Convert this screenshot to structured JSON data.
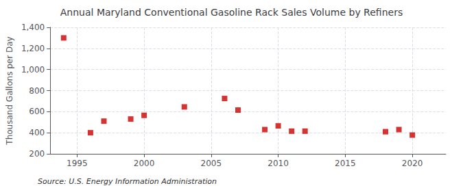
{
  "chart_data": {
    "type": "scatter",
    "title": "Annual Maryland Conventional Gasoline Rack Sales Volume by Refiners",
    "ylabel": "Thousand Gallons per Day",
    "annotations": [
      "Source: U.S. Energy Information Administration"
    ],
    "x": [
      1994,
      1996,
      1997,
      1999,
      2000,
      2003,
      2006,
      2007,
      2009,
      2010,
      2011,
      2012,
      2018,
      2019,
      2020
    ],
    "values": [
      1300,
      400,
      510,
      530,
      565,
      645,
      725,
      615,
      430,
      465,
      415,
      415,
      410,
      430,
      378
    ],
    "color": "#cc0000",
    "marker": "square",
    "xlim": [
      1993.0,
      2022.5
    ],
    "xticks": [
      1995,
      2000,
      2005,
      2010,
      2015,
      2020
    ],
    "ylim": [
      200,
      1400
    ],
    "yticks": [
      200,
      400,
      600,
      800,
      {
        "value": 1000,
        "label": "1,000"
      },
      {
        "value": 1200,
        "label": "1,200"
      },
      {
        "value": 1400,
        "label": "1,400"
      }
    ],
    "grid": true
  }
}
